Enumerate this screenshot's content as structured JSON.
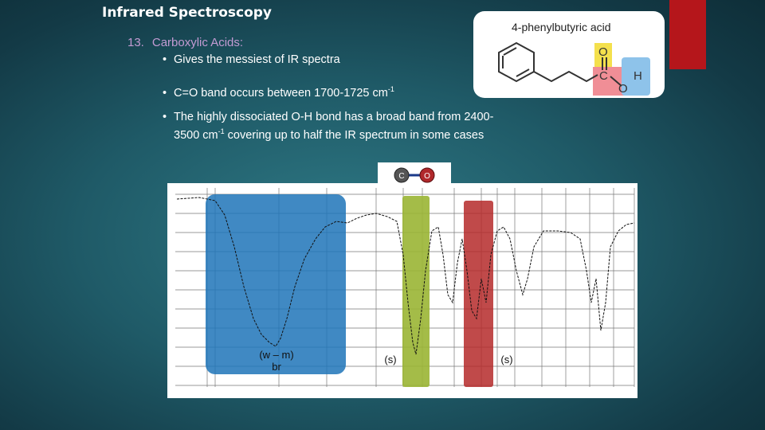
{
  "slide": {
    "title": "Infrared Spectroscopy",
    "section_number": "13.",
    "section_title": "Carboxylic Acids:",
    "bullets": {
      "b1": "Gives the messiest of IR spectra",
      "b2_pre": "C=O band occurs between 1700-1725 cm",
      "b2_sup": "-1",
      "b3_pre": "The highly dissociated O-H bond has a broad band from 2400-",
      "b3_cont_pre": "3500 cm",
      "b3_sup": "-1",
      "b3_cont_post": " covering up to half the IR spectrum in some cases"
    },
    "bullet_glyph": "•"
  },
  "molecule": {
    "name": "4-phenylbutyric acid",
    "atoms": {
      "o_top": "O",
      "c": "C",
      "o_right": "O",
      "h": "H"
    },
    "highlight_colors": {
      "carbonyl_o": "#f4e04d",
      "carbon": "#f08e96",
      "hydroxyl": "#8ec3ea"
    }
  },
  "co_model": {
    "atom1": "C",
    "atom2": "O"
  },
  "spectrum": {
    "bands": [
      {
        "label_line1": "(w – m)",
        "label_line2": "br",
        "color": "#1f74b8"
      },
      {
        "label_line1": "(s)",
        "color": "#9ab534"
      },
      {
        "label_line1": "(s)",
        "color": "#b52a2a"
      }
    ]
  }
}
